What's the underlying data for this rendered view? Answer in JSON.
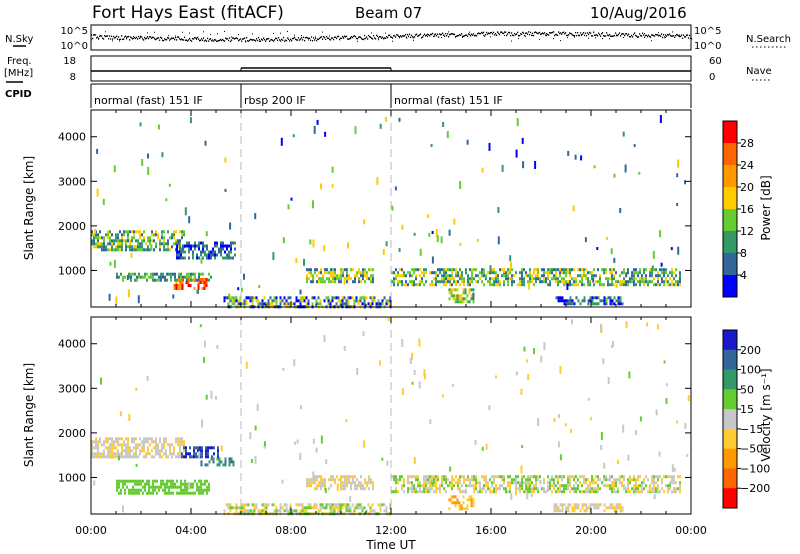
{
  "header": {
    "station": "Fort Hays East (fitACF)",
    "beam": "Beam 07",
    "date": "10/Aug/2016"
  },
  "noise_panel": {
    "left_label": "N.Sky",
    "right_label": "N.Search",
    "left_ticks": [
      "10^5",
      "10^0"
    ],
    "right_ticks": [
      "10^5",
      "10^0"
    ]
  },
  "freq_panel": {
    "left_label_1": "Freq.",
    "left_label_2": "[MHz]",
    "right_label": "Nave",
    "left_ticks": [
      "18",
      "8"
    ],
    "right_ticks": [
      "60",
      "0"
    ]
  },
  "cpid_panel": {
    "label": "CPID",
    "segments": [
      {
        "label": "normal (fast) 151 IF",
        "start_h": 0,
        "end_h": 6
      },
      {
        "label": "rbsp 200 IF",
        "start_h": 6,
        "end_h": 12
      },
      {
        "label": "normal (fast) 151 IF",
        "start_h": 12,
        "end_h": 24
      }
    ]
  },
  "x_axis": {
    "title": "Time UT",
    "ticks": [
      "00:00",
      "04:00",
      "08:00",
      "12:00",
      "16:00",
      "20:00",
      "00:00"
    ]
  },
  "power_colorbar": {
    "title": "Power [dB]",
    "ticks": [
      "28",
      "24",
      "20",
      "16",
      "12",
      "8",
      "4"
    ],
    "colors": [
      "#ff0000",
      "#ff6600",
      "#ff9900",
      "#ffcc00",
      "#66cc33",
      "#339966",
      "#336699",
      "#0000ff"
    ]
  },
  "velocity_colorbar": {
    "title": "Velocity [m s⁻¹]",
    "ticks": [
      "200",
      "100",
      "50",
      "15",
      "−15",
      "−50",
      "−100",
      "−200"
    ],
    "colors": [
      "#1a1acc",
      "#336699",
      "#339966",
      "#66cc33",
      "#c8c8c8",
      "#ffcc33",
      "#ff9900",
      "#ff6600",
      "#ff0000"
    ]
  },
  "chart_data": [
    {
      "type": "heatmap",
      "title": "Power",
      "xlabel": "",
      "ylabel": "Slant Range [km]",
      "xlim_hours": [
        0,
        24
      ],
      "ylim_km": [
        180,
        4600
      ],
      "yticks": [
        1000,
        2000,
        3000,
        4000
      ],
      "ytick_labels": [
        "1000",
        "2000",
        "3000",
        "4000"
      ],
      "regions": [
        {
          "t0": 0.0,
          "t1": 3.7,
          "r0": 1450,
          "r1": 1900,
          "value": "mixed",
          "colors": [
            "#66cc33",
            "#339966",
            "#ffcc00",
            "#336699"
          ]
        },
        {
          "t0": 3.4,
          "t1": 5.8,
          "r0": 1300,
          "r1": 1650,
          "value": "weak",
          "colors": [
            "#336699",
            "#339966",
            "#0000ff"
          ]
        },
        {
          "t0": 1.0,
          "t1": 4.8,
          "r0": 750,
          "r1": 950,
          "value": "mixed",
          "colors": [
            "#339966",
            "#66cc33",
            "#336699"
          ]
        },
        {
          "t0": 3.3,
          "t1": 4.6,
          "r0": 620,
          "r1": 830,
          "value": "strong",
          "colors": [
            "#ff6600",
            "#ff0000",
            "#ff9900"
          ]
        },
        {
          "t0": 5.3,
          "t1": 12.0,
          "r0": 200,
          "r1": 420,
          "value": "ground",
          "colors": [
            "#336699",
            "#0000ff",
            "#66cc33",
            "#ffcc00"
          ]
        },
        {
          "t0": 8.6,
          "t1": 11.3,
          "r0": 780,
          "r1": 1050,
          "value": "mixed",
          "colors": [
            "#336699",
            "#66cc33",
            "#ffcc00"
          ]
        },
        {
          "t0": 12.0,
          "t1": 23.6,
          "r0": 650,
          "r1": 1050,
          "value": "mixed",
          "colors": [
            "#336699",
            "#339966",
            "#66cc33",
            "#ffcc00"
          ]
        },
        {
          "t0": 14.3,
          "t1": 15.3,
          "r0": 320,
          "r1": 600,
          "value": "mixed",
          "colors": [
            "#ffcc00",
            "#66cc33",
            "#339966"
          ]
        },
        {
          "t0": 18.5,
          "t1": 21.3,
          "r0": 250,
          "r1": 420,
          "value": "weak",
          "colors": [
            "#336699",
            "#0000ff",
            "#339966"
          ]
        }
      ]
    },
    {
      "type": "heatmap",
      "title": "Velocity",
      "xlabel": "Time UT",
      "ylabel": "Slant Range [km]",
      "xlim_hours": [
        0,
        24
      ],
      "ylim_km": [
        180,
        4600
      ],
      "yticks": [
        1000,
        2000,
        3000,
        4000
      ],
      "ytick_labels": [
        "1000",
        "2000",
        "3000",
        "4000"
      ],
      "regions": [
        {
          "t0": 0.0,
          "t1": 3.7,
          "r0": 1450,
          "r1": 1900,
          "value": "near zero",
          "colors": [
            "#c8c8c8",
            "#ffcc33",
            "#c8c8c8"
          ]
        },
        {
          "t0": 3.6,
          "t1": 5.1,
          "r0": 1450,
          "r1": 1700,
          "value": "positive",
          "colors": [
            "#1a1acc",
            "#336699"
          ]
        },
        {
          "t0": 4.3,
          "t1": 5.8,
          "r0": 1250,
          "r1": 1450,
          "value": "positive",
          "colors": [
            "#339966",
            "#336699"
          ]
        },
        {
          "t0": 1.0,
          "t1": 4.7,
          "r0": 620,
          "r1": 950,
          "value": "positive",
          "colors": [
            "#66cc33"
          ]
        },
        {
          "t0": 5.3,
          "t1": 12.0,
          "r0": 200,
          "r1": 420,
          "value": "near zero",
          "colors": [
            "#ffcc33",
            "#c8c8c8",
            "#66cc33"
          ]
        },
        {
          "t0": 8.6,
          "t1": 11.3,
          "r0": 780,
          "r1": 1050,
          "value": "near zero",
          "colors": [
            "#c8c8c8",
            "#ffcc33"
          ]
        },
        {
          "t0": 12.0,
          "t1": 23.6,
          "r0": 650,
          "r1": 1050,
          "value": "near zero",
          "colors": [
            "#c8c8c8",
            "#ffcc33",
            "#66cc33"
          ]
        },
        {
          "t0": 14.3,
          "t1": 15.3,
          "r0": 320,
          "r1": 600,
          "value": "negative",
          "colors": [
            "#ffcc33",
            "#ff9900"
          ]
        },
        {
          "t0": 18.5,
          "t1": 21.3,
          "r0": 250,
          "r1": 420,
          "value": "near zero",
          "colors": [
            "#c8c8c8",
            "#ffcc33"
          ]
        }
      ]
    }
  ]
}
